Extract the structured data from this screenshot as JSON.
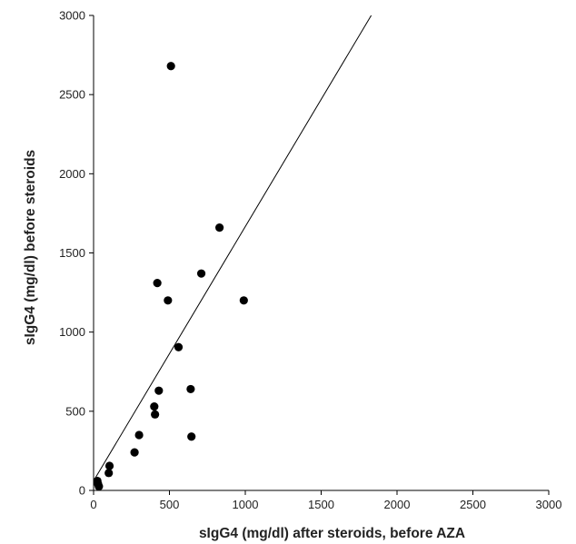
{
  "chart_data": {
    "type": "scatter",
    "title": "",
    "xlabel": "sIgG4 (mg/dl) after steroids, before AZA",
    "ylabel": "sIgG4 (mg/dl) before steroids",
    "xlim": [
      0,
      3000
    ],
    "ylim": [
      0,
      3000
    ],
    "xticks": [
      "0",
      "500",
      "1000",
      "1500",
      "2000",
      "2500",
      "3000"
    ],
    "yticks": [
      "0",
      "500",
      "1000",
      "1500",
      "2000",
      "2500",
      "3000"
    ],
    "grid": false,
    "legend": "none",
    "marker_color": "#000000",
    "points": [
      {
        "x": 510,
        "y": 2680
      },
      {
        "x": 830,
        "y": 1660
      },
      {
        "x": 710,
        "y": 1370
      },
      {
        "x": 420,
        "y": 1310
      },
      {
        "x": 490,
        "y": 1200
      },
      {
        "x": 990,
        "y": 1200
      },
      {
        "x": 560,
        "y": 905
      },
      {
        "x": 640,
        "y": 640
      },
      {
        "x": 430,
        "y": 630
      },
      {
        "x": 400,
        "y": 530
      },
      {
        "x": 405,
        "y": 480
      },
      {
        "x": 300,
        "y": 350
      },
      {
        "x": 645,
        "y": 340
      },
      {
        "x": 270,
        "y": 240
      },
      {
        "x": 105,
        "y": 155
      },
      {
        "x": 100,
        "y": 110
      },
      {
        "x": 25,
        "y": 60
      },
      {
        "x": 30,
        "y": 40
      },
      {
        "x": 35,
        "y": 25
      }
    ],
    "reference_line": {
      "x": [
        0,
        1830
      ],
      "y": [
        60,
        3000
      ]
    }
  }
}
